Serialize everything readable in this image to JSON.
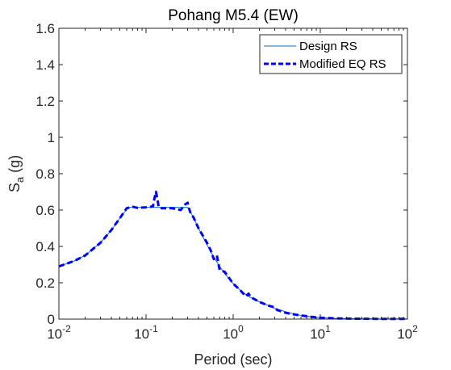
{
  "chart_data": {
    "type": "line",
    "title": "Pohang M5.4 (EW)",
    "xlabel": "Period (sec)",
    "ylabel": {
      "main": "S",
      "sub": "a",
      "unit": " (g)"
    },
    "x_scale": "log",
    "xlim": [
      0.01,
      100
    ],
    "ylim": [
      0,
      1.6
    ],
    "x_ticks": [
      {
        "value": 0.01,
        "base": "10",
        "exp": "-2"
      },
      {
        "value": 0.1,
        "base": "10",
        "exp": "-1"
      },
      {
        "value": 1,
        "base": "10",
        "exp": "0"
      },
      {
        "value": 10,
        "base": "10",
        "exp": "1"
      },
      {
        "value": 100,
        "base": "10",
        "exp": "2"
      }
    ],
    "y_ticks": [
      {
        "value": 0,
        "label": "0"
      },
      {
        "value": 0.2,
        "label": "0.2"
      },
      {
        "value": 0.4,
        "label": "0.4"
      },
      {
        "value": 0.6,
        "label": "0.6"
      },
      {
        "value": 0.8,
        "label": "0.8"
      },
      {
        "value": 1.0,
        "label": "1"
      },
      {
        "value": 1.2,
        "label": "1.2"
      },
      {
        "value": 1.4,
        "label": "1.4"
      },
      {
        "value": 1.6,
        "label": "1.6"
      }
    ],
    "grid": false,
    "legend_position": "top-right",
    "series": [
      {
        "name": "Design RS",
        "color": "#0072BD",
        "line_style": "solid",
        "x": [
          0.01,
          0.015,
          0.02,
          0.03,
          0.04,
          0.05,
          0.0625,
          0.1,
          0.15,
          0.2,
          0.3,
          0.35,
          0.4,
          0.5,
          0.6,
          0.7,
          0.8,
          1.0,
          1.2,
          1.5,
          2,
          3,
          4,
          5,
          6,
          8,
          10,
          15,
          20,
          30,
          50,
          100
        ],
        "y": [
          0.29,
          0.32,
          0.35,
          0.42,
          0.49,
          0.555,
          0.615,
          0.615,
          0.615,
          0.615,
          0.615,
          0.56,
          0.5,
          0.41,
          0.34,
          0.29,
          0.25,
          0.195,
          0.16,
          0.125,
          0.095,
          0.06,
          0.04,
          0.028,
          0.02,
          0.012,
          0.008,
          0.004,
          0.003,
          0.002,
          0.001,
          0.001
        ]
      },
      {
        "name": "Modified EQ RS",
        "color": "#0000FF",
        "line_style": "dashed",
        "x": [
          0.01,
          0.015,
          0.02,
          0.03,
          0.04,
          0.05,
          0.06,
          0.07,
          0.08,
          0.1,
          0.12,
          0.125,
          0.13,
          0.135,
          0.14,
          0.15,
          0.2,
          0.25,
          0.28,
          0.3,
          0.32,
          0.35,
          0.4,
          0.5,
          0.55,
          0.6,
          0.65,
          0.7,
          0.8,
          1.0,
          1.2,
          1.4,
          1.5,
          1.6,
          2,
          2.5,
          3,
          3.2,
          4,
          5,
          6,
          8,
          10,
          15,
          20,
          30,
          50,
          100
        ],
        "y": [
          0.29,
          0.32,
          0.35,
          0.42,
          0.49,
          0.555,
          0.61,
          0.618,
          0.612,
          0.615,
          0.62,
          0.665,
          0.7,
          0.66,
          0.615,
          0.61,
          0.61,
          0.6,
          0.63,
          0.64,
          0.59,
          0.56,
          0.5,
          0.42,
          0.38,
          0.33,
          0.35,
          0.27,
          0.26,
          0.195,
          0.16,
          0.125,
          0.14,
          0.12,
          0.095,
          0.075,
          0.065,
          0.05,
          0.035,
          0.026,
          0.02,
          0.012,
          0.008,
          0.004,
          0.003,
          0.002,
          0.001,
          0.001
        ]
      }
    ]
  }
}
